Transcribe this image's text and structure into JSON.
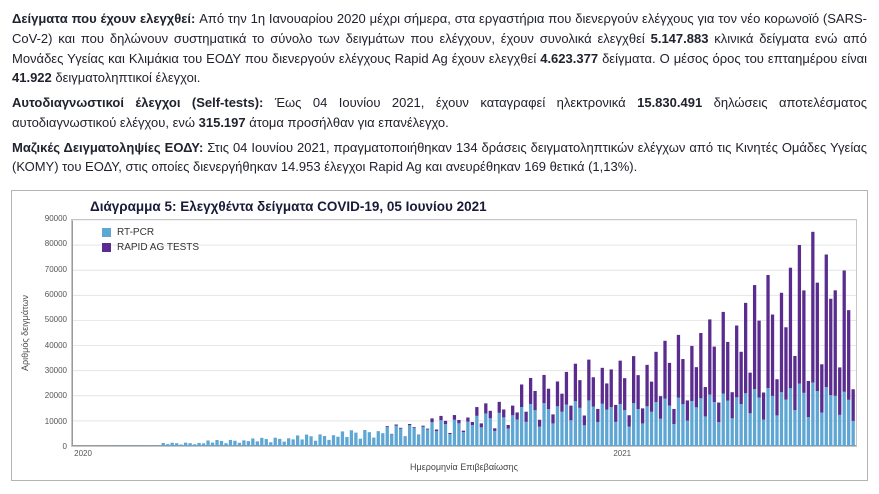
{
  "paragraphs": [
    {
      "segments": [
        {
          "bold": true,
          "text": "Δείγματα που έχουν ελεγχθεί: "
        },
        {
          "bold": false,
          "text": "Από την 1η Ιανουαρίου 2020 μέχρι σήμερα, στα εργαστήρια που διενεργούν ελέγχους για τον νέο κορωνοϊό (SARS-CoV-2) και που δηλώνουν συστηματικά το σύνολο των δειγμάτων που ελέγχουν, έχουν συνολικά ελεγχθεί "
        },
        {
          "bold": true,
          "text": "5.147.883"
        },
        {
          "bold": false,
          "text": " κλινικά δείγματα ενώ από Μονάδες Υγείας και Κλιμάκια του ΕΟΔΥ που διενεργούν ελέγχους Rapid Ag έχουν ελεγχθεί "
        },
        {
          "bold": true,
          "text": "4.623.377"
        },
        {
          "bold": false,
          "text": " δείγματα. Ο μέσος όρος του επταημέρου είναι "
        },
        {
          "bold": true,
          "text": "41.922"
        },
        {
          "bold": false,
          "text": " δειγματοληπτικοί έλεγχοι."
        }
      ]
    },
    {
      "segments": [
        {
          "bold": true,
          "text": "Αυτοδιαγνωστικοί έλεγχοι (Self-tests): "
        },
        {
          "bold": false,
          "text": "Έως 04 Ιουνίου 2021, έχουν καταγραφεί ηλεκτρονικά "
        },
        {
          "bold": true,
          "text": "15.830.491"
        },
        {
          "bold": false,
          "text": " δηλώσεις αποτελέσματος αυτοδιαγνωστικού ελέγχου, ενώ "
        },
        {
          "bold": true,
          "text": "315.197"
        },
        {
          "bold": false,
          "text": " άτομα προσήλθαν για επανέλεγχο."
        }
      ]
    },
    {
      "segments": [
        {
          "bold": true,
          "text": "Μαζικές Δειγματοληψίες ΕΟΔΥ: "
        },
        {
          "bold": false,
          "text": "Στις 04 Ιουνίου 2021, πραγματοποιήθηκαν 134 δράσεις δειγματοληπτικών ελέγχων από τις Κινητές Ομάδες Υγείας (ΚΟΜΥ) του ΕΟΔΥ, στις οποίες διενεργήθηκαν 14.953 έλεγχοι Rapid Ag και ανευρέθηκαν 169 θετικά (1,13%)."
        }
      ]
    }
  ],
  "chart_data": {
    "type": "bar",
    "stacked": true,
    "title": "Διάγραμμα 5: Ελεγχθέντα δείγματα COVID-19, 05 Ιουνίου 2021",
    "xlabel": "Ημερομηνία Επιβεβαίωσης",
    "ylabel": "Αριθμός δειγμάτων",
    "ylim": [
      0,
      90000
    ],
    "grid": true,
    "legend_position": "top-left",
    "yticks": [
      0,
      10000,
      20000,
      30000,
      40000,
      50000,
      60000,
      70000,
      80000,
      90000
    ],
    "xticks": [
      {
        "label": "2020",
        "pos": 0.004
      },
      {
        "label": "2021",
        "pos": 0.69
      }
    ],
    "series": [
      {
        "name": "RT-PCR",
        "color": "#5ea6d4",
        "values": [
          50,
          30,
          55,
          45,
          25,
          55,
          50,
          30,
          50,
          45,
          200,
          125,
          215,
          185,
          100,
          220,
          190,
          115,
          205,
          175,
          1200,
          745,
          1295,
          1105,
          600,
          1320,
          1140,
          695,
          1225,
          1055,
          2200,
          1365,
          2375,
          2025,
          1100,
          2420,
          2090,
          1275,
          2245,
          1935,
          3000,
          1860,
          3240,
          2760,
          1500,
          3300,
          2850,
          1740,
          3060,
          2640,
          4200,
          2605,
          4535,
          3865,
          2100,
          4620,
          3990,
          2435,
          4285,
          3695,
          5800,
          3595,
          6265,
          5335,
          2900,
          6380,
          5510,
          3365,
          5915,
          5105,
          7500,
          4650,
          8100,
          6900,
          3750,
          8250,
          7125,
          4350,
          7650,
          6600,
          9500,
          5890,
          10260,
          8740,
          4750,
          10450,
          9025,
          5510,
          9690,
          8360,
          12000,
          7440,
          12960,
          11040,
          6000,
          13200,
          11400,
          6960,
          12240,
          10560,
          15500,
          9610,
          16740,
          14260,
          7750,
          17050,
          14725,
          8990,
          15810,
          13640,
          16500,
          10230,
          17820,
          15180,
          8250,
          18150,
          15675,
          9570,
          16830,
          14520,
          15500,
          9610,
          16740,
          14260,
          7750,
          17050,
          14725,
          8990,
          15810,
          13640,
          17500,
          10850,
          18900,
          16100,
          8750,
          19250,
          16625,
          10150,
          17850,
          15400,
          19000,
          11780,
          20520,
          17480,
          9500,
          20900,
          18050,
          11020,
          19380,
          16720,
          21000,
          13020,
          22680,
          19320,
          10500,
          23100,
          19950,
          12180,
          21420,
          18480,
          23000,
          14260,
          24840,
          21160,
          11500,
          25300,
          21850,
          13340,
          23460,
          20240,
          20000,
          12400,
          21600,
          18400,
          10000
        ]
      },
      {
        "name": "RAPID AG TESTS",
        "color": "#5b2c8f",
        "values": [
          0,
          0,
          0,
          0,
          0,
          0,
          0,
          0,
          0,
          0,
          0,
          0,
          0,
          0,
          0,
          0,
          0,
          0,
          0,
          0,
          0,
          0,
          0,
          0,
          0,
          0,
          0,
          0,
          0,
          0,
          0,
          0,
          0,
          0,
          0,
          0,
          0,
          0,
          0,
          0,
          0,
          0,
          0,
          0,
          0,
          0,
          0,
          0,
          0,
          0,
          0,
          0,
          0,
          0,
          0,
          0,
          0,
          0,
          0,
          0,
          0,
          0,
          0,
          0,
          0,
          0,
          0,
          0,
          0,
          0,
          400,
          180,
          460,
          340,
          120,
          500,
          360,
          160,
          440,
          320,
          1500,
          675,
          1725,
          1275,
          450,
          1875,
          1350,
          600,
          1650,
          1200,
          3500,
          1575,
          4025,
          2975,
          1050,
          4375,
          3150,
          1400,
          3850,
          2800,
          9000,
          4050,
          10350,
          7650,
          2700,
          11250,
          8100,
          3600,
          9900,
          7200,
          13000,
          5850,
          14950,
          11050,
          3900,
          16250,
          11700,
          5200,
          14300,
          10400,
          15000,
          6750,
          17250,
          12750,
          4500,
          18750,
          13500,
          6000,
          16500,
          12000,
          20000,
          9000,
          23000,
          17000,
          6000,
          25000,
          18000,
          8000,
          22000,
          16000,
          26000,
          11700,
          29900,
          22100,
          7800,
          32500,
          23400,
          10400,
          28600,
          20800,
          36000,
          16200,
          41400,
          30600,
          10800,
          45000,
          32400,
          14400,
          39600,
          28800,
          48000,
          21600,
          55200,
          40800,
          14400,
          60000,
          43200,
          19200,
          52800,
          38400,
          42000,
          18900,
          48300,
          35700,
          12600
        ]
      }
    ]
  }
}
